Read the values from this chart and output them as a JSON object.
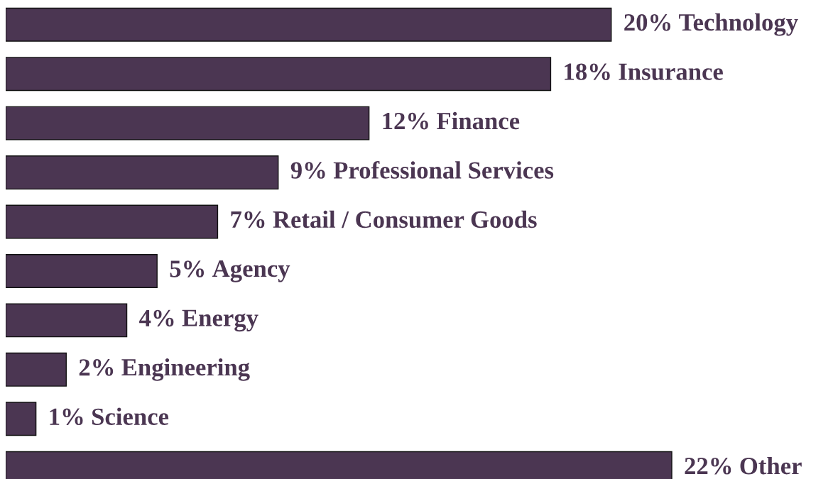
{
  "chart_data": {
    "type": "bar",
    "orientation": "horizontal",
    "categories": [
      "Technology",
      "Insurance",
      "Finance",
      "Professional Services",
      "Retail / Consumer Goods",
      "Agency",
      "Energy",
      "Engineering",
      "Science",
      "Other"
    ],
    "values": [
      20,
      18,
      12,
      9,
      7,
      5,
      4,
      2,
      1,
      22
    ],
    "value_labels": [
      "20%",
      "18%",
      "12%",
      "9%",
      "7%",
      "5%",
      "4%",
      "2%",
      "1%",
      "22%"
    ],
    "color": "#4b3652"
  }
}
